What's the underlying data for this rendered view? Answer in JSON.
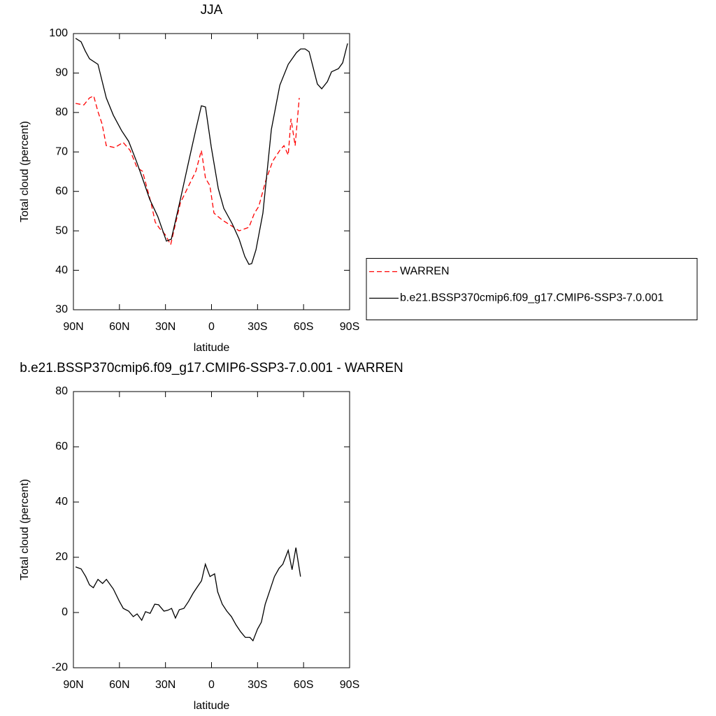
{
  "chart_data": [
    {
      "type": "line",
      "title": "JJA",
      "xlabel": "latitude",
      "ylabel": "Total cloud (percent)",
      "xlim": [
        90,
        -90
      ],
      "xticks": [
        {
          "value": 90,
          "label": "90N"
        },
        {
          "value": 60,
          "label": "60N"
        },
        {
          "value": 30,
          "label": "30N"
        },
        0,
        {
          "value": -30,
          "label": "30S"
        },
        {
          "value": -60,
          "label": "60S"
        },
        {
          "value": -90,
          "label": "90S"
        }
      ],
      "ylim": [
        30,
        100
      ],
      "yticks": [
        30,
        40,
        50,
        60,
        70,
        80,
        90,
        100
      ],
      "legend": "right",
      "series": [
        {
          "name": "WARREN",
          "color": "#ff0000",
          "dash": true,
          "x": [
            88.6,
            83.2,
            79.5,
            76.8,
            74,
            71.3,
            68.6,
            63.1,
            57.6,
            53.1,
            48.5,
            45,
            39.4,
            36.7,
            34,
            30.3,
            26.6,
            24,
            20.3,
            14.8,
            10.2,
            6.6,
            3.9,
            1.1,
            -1.6,
            -7.1,
            -12.5,
            -18,
            -24.4,
            -28,
            -30.8,
            -35.4,
            -39.9,
            -44.5,
            -47.2,
            -50,
            -51.8,
            -54.5,
            -57.2
          ],
          "values": [
            82.3,
            81.9,
            83.7,
            84.2,
            80.2,
            77.1,
            71.6,
            71.1,
            72.4,
            70.4,
            66,
            65.1,
            57.1,
            52.2,
            50.7,
            49.1,
            46.5,
            50.9,
            57.1,
            61.5,
            65.1,
            70.4,
            63.3,
            61.5,
            54.5,
            52.7,
            51.4,
            50,
            50.9,
            54.5,
            56.2,
            62.8,
            67.7,
            70.4,
            71.6,
            69.2,
            78.4,
            71.6,
            83.7
          ]
        },
        {
          "name": "b.e21.BSSP370cmip6.f09_g17.CMIP6-SSP3-7.0.001",
          "color": "#000000",
          "dash": false,
          "x": [
            88.6,
            85,
            82.3,
            79.5,
            74,
            68.6,
            64,
            58.6,
            54,
            49,
            45,
            40.3,
            35,
            29.4,
            26.2,
            20.3,
            14.8,
            10.2,
            6.6,
            3.9,
            0.2,
            -4.4,
            -8,
            -13.5,
            -18,
            -21.7,
            -24.4,
            -26.2,
            -29,
            -33.5,
            -39,
            -44.5,
            -50,
            -55.4,
            -58.1,
            -61,
            -63.6,
            -69,
            -71.8,
            -75.5,
            -78.2,
            -82.7,
            -85.5,
            -88.7
          ],
          "values": [
            98.8,
            97.9,
            95.6,
            93.6,
            92.2,
            83.7,
            79.3,
            75.4,
            72.7,
            67.7,
            63.3,
            58,
            53.6,
            47.4,
            47.9,
            58,
            67.7,
            75.7,
            81.7,
            81.4,
            71.3,
            60.7,
            55.7,
            51.8,
            47.9,
            43.5,
            41.5,
            41.7,
            45.2,
            54.5,
            75.7,
            86.9,
            92.2,
            95.2,
            96.1,
            96.1,
            95.4,
            87.2,
            86,
            87.8,
            90.3,
            91.1,
            92.6,
            97.5
          ]
        }
      ]
    },
    {
      "type": "line",
      "title": "b.e21.BSSP370cmip6.f09_g17.CMIP6-SSP3-7.0.001 - WARREN",
      "xlabel": "latitude",
      "ylabel": "Total cloud (percent)",
      "xlim": [
        90,
        -90
      ],
      "xticks": [
        {
          "value": 90,
          "label": "90N"
        },
        {
          "value": 60,
          "label": "60N"
        },
        {
          "value": 30,
          "label": "30N"
        },
        0,
        {
          "value": -30,
          "label": "30S"
        },
        {
          "value": -60,
          "label": "60S"
        },
        {
          "value": -90,
          "label": "90S"
        }
      ],
      "ylim": [
        -20,
        80
      ],
      "yticks": [
        -20,
        0,
        20,
        40,
        60,
        80
      ],
      "series": [
        {
          "color": "#000000",
          "dash": false,
          "x": [
            88.6,
            85,
            82,
            79.5,
            77,
            74,
            71,
            68.5,
            64,
            60,
            57.5,
            54,
            51,
            48.5,
            45.5,
            43,
            40,
            37,
            34.5,
            31,
            28.5,
            26,
            23.5,
            21,
            18,
            15,
            12,
            9,
            6.5,
            4,
            1,
            -2,
            -4,
            -7,
            -10,
            -13,
            -16,
            -19,
            -22,
            -25,
            -27,
            -30,
            -32.5,
            -35,
            -38,
            -41,
            -44,
            -46.5,
            -50,
            -52.5,
            -55,
            -58
          ],
          "values": [
            16.5,
            15.8,
            13,
            10,
            9,
            12,
            10.5,
            12,
            8.5,
            4,
            1.5,
            0.5,
            -1.5,
            -0.5,
            -2.8,
            0.3,
            -0.3,
            3,
            2.8,
            0.5,
            0.8,
            1.5,
            -2,
            1,
            1.5,
            4,
            7,
            9.5,
            11.5,
            17.5,
            13,
            14,
            7.5,
            3,
            0.5,
            -1.5,
            -4.5,
            -7,
            -9,
            -9,
            -10.2,
            -6,
            -3.5,
            3,
            8,
            13,
            16,
            17.5,
            22.5,
            15.5,
            23.5,
            13
          ]
        }
      ]
    }
  ]
}
